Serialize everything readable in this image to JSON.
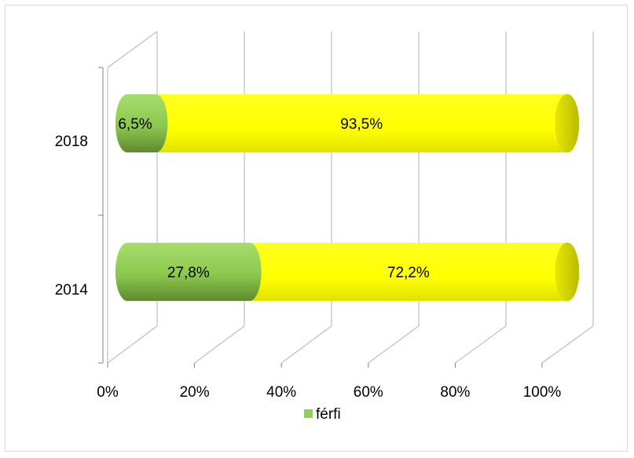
{
  "chart_data": {
    "type": "bar",
    "orientation": "horizontal",
    "stacking": "percent",
    "style": "3d-cylinder",
    "categories": [
      "2014",
      "2018"
    ],
    "series": [
      {
        "name": "férfi",
        "values": [
          27.8,
          6.5
        ],
        "color": "#92d050"
      },
      {
        "name": "",
        "values": [
          72.2,
          93.5
        ],
        "color": "#ffff00"
      }
    ],
    "data_labels": {
      "2014": [
        "27,8%",
        "72,2%"
      ],
      "2018": [
        "6,5%",
        "93,5%"
      ]
    },
    "x_ticks": [
      "0%",
      "20%",
      "40%",
      "60%",
      "80%",
      "100%"
    ],
    "xlim": [
      0,
      100
    ],
    "grid": true,
    "legend": {
      "position": "bottom",
      "entries": [
        "férfi"
      ]
    }
  }
}
